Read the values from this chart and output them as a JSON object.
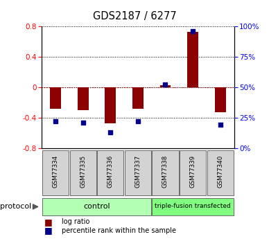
{
  "title": "GDS2187 / 6277",
  "samples": [
    "GSM77334",
    "GSM77335",
    "GSM77336",
    "GSM77337",
    "GSM77338",
    "GSM77339",
    "GSM77340"
  ],
  "log_ratio": [
    -0.28,
    -0.3,
    -0.47,
    -0.28,
    0.03,
    0.73,
    -0.33
  ],
  "percentile_rank": [
    22,
    21,
    13,
    22,
    52,
    96,
    19
  ],
  "ylim_left": [
    -0.8,
    0.8
  ],
  "ylim_right": [
    0,
    100
  ],
  "bar_color": "#8b0000",
  "scatter_color": "#00008b",
  "grid_yticks_left": [
    -0.8,
    -0.4,
    0.0,
    0.4,
    0.8
  ],
  "grid_yticks_right": [
    0,
    25,
    50,
    75,
    100
  ],
  "background_color": "#ffffff",
  "ctrl_color": "#b3ffb3",
  "tf_color": "#80ff80",
  "sample_box_color": "#d3d3d3",
  "ctrl_label": "control",
  "tf_label": "triple-fusion transfected",
  "protocol_label": "protocol",
  "legend_bar_label": "log ratio",
  "legend_scatter_label": "percentile rank within the sample",
  "bar_width": 0.4
}
